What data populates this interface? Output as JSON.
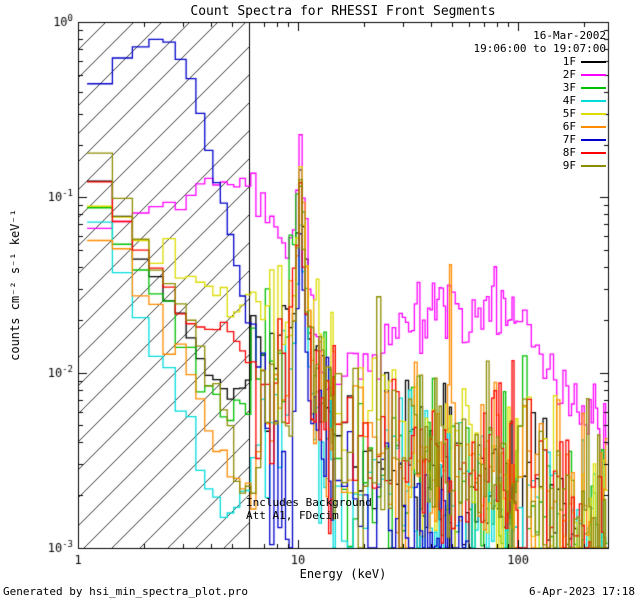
{
  "footer": {
    "left": "Generated by hsi_min_spectra_plot.pro",
    "right": "6-Apr-2023 17:18"
  },
  "chart_data": {
    "type": "line",
    "mode": "histogram-step",
    "x_scale": "log",
    "y_scale": "log",
    "xlim": [
      1,
      256
    ],
    "ylim": [
      0.001,
      1
    ],
    "grid": false,
    "title": "Count Spectra for RHESSI Front Segments",
    "xlabel": "Energy (keV)",
    "ylabel": "counts cm⁻² s⁻¹ keV⁻¹",
    "x_ticks": [
      {
        "value": 1,
        "label": "1"
      },
      {
        "value": 10,
        "label": "10"
      },
      {
        "value": 100,
        "label": "100"
      }
    ],
    "y_ticks": [
      {
        "value": 1,
        "label": "10^0"
      },
      {
        "value": 0.1,
        "label": "10^-1"
      },
      {
        "value": 0.01,
        "label": "10^-2"
      },
      {
        "value": 0.001,
        "label": "10^-3"
      }
    ],
    "excluded_region": {
      "x_from": 1,
      "x_to": 6,
      "style": "hatched"
    },
    "annotations": [
      "Includes Background",
      "Att A1, FDecim"
    ],
    "legend": {
      "date": "16-Mar-2002",
      "time_range": "19:06:00 to 19:07:00"
    },
    "binning": {
      "start": 1.1,
      "segments": [
        {
          "upto": 15,
          "step": 0.3333
        },
        {
          "upto": 50,
          "step": 1
        },
        {
          "upto": 100,
          "step": 2
        },
        {
          "upto": 256,
          "step": 5
        }
      ]
    },
    "series": [
      {
        "name": "1F",
        "color": "#000000",
        "noise_lo": 0.05,
        "noise_hi": 0.28,
        "anchors": [
          [
            1.1,
            0.17
          ],
          [
            1.35,
            0.105
          ],
          [
            1.65,
            0.068
          ],
          [
            2.0,
            0.044
          ],
          [
            2.5,
            0.028
          ],
          [
            3.0,
            0.018
          ],
          [
            3.6,
            0.012
          ],
          [
            4.3,
            0.0085
          ],
          [
            5.2,
            0.007
          ],
          [
            6.2,
            0.009
          ],
          [
            7.3,
            0.011
          ],
          [
            8.5,
            0.014
          ],
          [
            9.4,
            0.02
          ],
          [
            10.2,
            0.12
          ],
          [
            10.9,
            0.03
          ],
          [
            11.7,
            0.007
          ],
          [
            13,
            0.0045
          ],
          [
            16,
            0.0038
          ],
          [
            20,
            0.0033
          ],
          [
            27,
            0.0029
          ],
          [
            36,
            0.0026
          ],
          [
            50,
            0.0023
          ],
          [
            70,
            0.002
          ],
          [
            95,
            0.0017
          ],
          [
            125,
            0.0014
          ],
          [
            160,
            0.0011
          ],
          [
            190,
            0.001
          ]
        ]
      },
      {
        "name": "2F",
        "color": "#ff00ff",
        "noise_lo": 0.03,
        "noise_hi": 0.1,
        "anchors": [
          [
            1.1,
            0.062
          ],
          [
            1.4,
            0.072
          ],
          [
            1.8,
            0.082
          ],
          [
            2.3,
            0.088
          ],
          [
            2.9,
            0.095
          ],
          [
            3.6,
            0.105
          ],
          [
            4.4,
            0.115
          ],
          [
            5.2,
            0.125
          ],
          [
            6.0,
            0.115
          ],
          [
            7.0,
            0.092
          ],
          [
            8.0,
            0.06
          ],
          [
            8.8,
            0.042
          ],
          [
            9.5,
            0.05
          ],
          [
            10.2,
            0.19
          ],
          [
            10.9,
            0.07
          ],
          [
            11.6,
            0.02
          ],
          [
            12.5,
            0.01
          ],
          [
            14,
            0.0085
          ],
          [
            16,
            0.009
          ],
          [
            19,
            0.011
          ],
          [
            23,
            0.014
          ],
          [
            28,
            0.017
          ],
          [
            34,
            0.02
          ],
          [
            42,
            0.023
          ],
          [
            52,
            0.025
          ],
          [
            65,
            0.024
          ],
          [
            80,
            0.022
          ],
          [
            95,
            0.019
          ],
          [
            115,
            0.015
          ],
          [
            140,
            0.011
          ],
          [
            170,
            0.0075
          ],
          [
            200,
            0.0055
          ],
          [
            230,
            0.0045
          ],
          [
            256,
            0.004
          ]
        ]
      },
      {
        "name": "3F",
        "color": "#00c000",
        "noise_lo": 0.05,
        "noise_hi": 0.3,
        "anchors": [
          [
            1.1,
            0.125
          ],
          [
            1.4,
            0.075
          ],
          [
            1.75,
            0.048
          ],
          [
            2.2,
            0.03
          ],
          [
            2.7,
            0.019
          ],
          [
            3.3,
            0.012
          ],
          [
            4.0,
            0.008
          ],
          [
            4.8,
            0.006
          ],
          [
            5.8,
            0.0065
          ],
          [
            6.8,
            0.008
          ],
          [
            7.9,
            0.01
          ],
          [
            9.0,
            0.016
          ],
          [
            10.2,
            0.165
          ],
          [
            10.9,
            0.035
          ],
          [
            11.7,
            0.008
          ],
          [
            13,
            0.005
          ],
          [
            16,
            0.004
          ],
          [
            20,
            0.0034
          ],
          [
            27,
            0.003
          ],
          [
            36,
            0.0027
          ],
          [
            48,
            0.0025
          ],
          [
            65,
            0.0023
          ],
          [
            88,
            0.0021
          ],
          [
            115,
            0.0019
          ],
          [
            150,
            0.0016
          ],
          [
            195,
            0.0013
          ],
          [
            256,
            0.0011
          ]
        ]
      },
      {
        "name": "4F",
        "color": "#00dcdc",
        "noise_lo": 0.05,
        "noise_hi": 0.3,
        "anchors": [
          [
            1.1,
            0.092
          ],
          [
            1.4,
            0.052
          ],
          [
            1.75,
            0.028
          ],
          [
            2.2,
            0.015
          ],
          [
            2.7,
            0.008
          ],
          [
            3.3,
            0.0045
          ],
          [
            4.0,
            0.0024
          ],
          [
            4.7,
            0.0013
          ],
          [
            5.4,
            0.002
          ],
          [
            6.3,
            0.0028
          ],
          [
            7.4,
            0.0034
          ],
          [
            8.6,
            0.005
          ],
          [
            9.5,
            0.009
          ],
          [
            10.2,
            0.09
          ],
          [
            10.9,
            0.022
          ],
          [
            11.7,
            0.006
          ],
          [
            13,
            0.004
          ],
          [
            16,
            0.0032
          ],
          [
            21,
            0.0028
          ],
          [
            28,
            0.0026
          ],
          [
            38,
            0.0024
          ],
          [
            52,
            0.0022
          ],
          [
            72,
            0.002
          ],
          [
            100,
            0.0018
          ],
          [
            135,
            0.0015
          ],
          [
            180,
            0.0012
          ],
          [
            256,
            0.001
          ]
        ]
      },
      {
        "name": "5F",
        "color": "#dcdc00",
        "noise_lo": 0.05,
        "noise_hi": 0.28,
        "anchors": [
          [
            1.1,
            0.105
          ],
          [
            1.4,
            0.078
          ],
          [
            1.8,
            0.06
          ],
          [
            2.3,
            0.047
          ],
          [
            2.9,
            0.038
          ],
          [
            3.6,
            0.032
          ],
          [
            4.4,
            0.028
          ],
          [
            5.3,
            0.024
          ],
          [
            6.3,
            0.025
          ],
          [
            7.4,
            0.023
          ],
          [
            8.6,
            0.02
          ],
          [
            9.5,
            0.022
          ],
          [
            10.2,
            0.13
          ],
          [
            10.9,
            0.045
          ],
          [
            11.7,
            0.014
          ],
          [
            13,
            0.01
          ],
          [
            15,
            0.008
          ],
          [
            18,
            0.0062
          ],
          [
            22,
            0.005
          ],
          [
            28,
            0.0042
          ],
          [
            36,
            0.0036
          ],
          [
            48,
            0.0031
          ],
          [
            64,
            0.0028
          ],
          [
            85,
            0.0025
          ],
          [
            110,
            0.0022
          ],
          [
            145,
            0.0018
          ],
          [
            185,
            0.0015
          ],
          [
            256,
            0.0012
          ]
        ]
      },
      {
        "name": "6F",
        "color": "#ff8c00",
        "noise_lo": 0.06,
        "noise_hi": 0.32,
        "anchors": [
          [
            1.25,
            0.068
          ],
          [
            1.55,
            0.045
          ],
          [
            1.9,
            0.03
          ],
          [
            2.35,
            0.019
          ],
          [
            2.85,
            0.012
          ],
          [
            3.45,
            0.0075
          ],
          [
            4.1,
            0.0045
          ],
          [
            4.8,
            0.0028
          ],
          [
            5.5,
            0.002
          ],
          [
            6.4,
            0.0032
          ],
          [
            7.5,
            0.005
          ],
          [
            8.7,
            0.008
          ],
          [
            9.5,
            0.013
          ],
          [
            10.2,
            0.14
          ],
          [
            10.9,
            0.04
          ],
          [
            11.7,
            0.01
          ],
          [
            13,
            0.0065
          ],
          [
            15.5,
            0.005
          ],
          [
            19,
            0.0044
          ],
          [
            24,
            0.004
          ],
          [
            31,
            0.0037
          ],
          [
            41,
            0.0034
          ],
          [
            54,
            0.0031
          ],
          [
            71,
            0.0029
          ],
          [
            93,
            0.0026
          ],
          [
            120,
            0.0022
          ],
          [
            155,
            0.0018
          ],
          [
            200,
            0.0014
          ],
          [
            256,
            0.0012
          ]
        ]
      },
      {
        "name": "7F",
        "color": "#0000cc",
        "noise_lo": 0.02,
        "noise_hi": 0.25,
        "anchors": [
          [
            1.1,
            0.33
          ],
          [
            1.35,
            0.5
          ],
          [
            1.6,
            0.65
          ],
          [
            1.9,
            0.75
          ],
          [
            2.2,
            0.82
          ],
          [
            2.55,
            0.8
          ],
          [
            2.9,
            0.68
          ],
          [
            3.3,
            0.45
          ],
          [
            3.7,
            0.26
          ],
          [
            4.1,
            0.15
          ],
          [
            4.6,
            0.085
          ],
          [
            5.1,
            0.05
          ],
          [
            5.6,
            0.028
          ],
          [
            6.2,
            0.015
          ],
          [
            6.9,
            0.0075
          ],
          [
            7.7,
            0.0035
          ],
          [
            8.5,
            0.0018
          ],
          [
            9.3,
            0.0013
          ],
          [
            10.2,
            0.075
          ],
          [
            10.9,
            0.015
          ],
          [
            11.7,
            0.004
          ],
          [
            13,
            0.0025
          ],
          [
            16,
            0.002
          ],
          [
            20,
            0.0017
          ],
          [
            26,
            0.0014
          ],
          [
            34,
            0.0012
          ],
          [
            45,
            0.0011
          ],
          [
            60,
            0.001
          ]
        ]
      },
      {
        "name": "8F",
        "color": "#ff0000",
        "noise_lo": 0.05,
        "noise_hi": 0.3,
        "anchors": [
          [
            1.1,
            0.155
          ],
          [
            1.4,
            0.095
          ],
          [
            1.75,
            0.062
          ],
          [
            2.2,
            0.04
          ],
          [
            2.7,
            0.027
          ],
          [
            3.3,
            0.02
          ],
          [
            4.0,
            0.017
          ],
          [
            4.8,
            0.016
          ],
          [
            5.8,
            0.013
          ],
          [
            6.8,
            0.01
          ],
          [
            7.9,
            0.0075
          ],
          [
            9.0,
            0.009
          ],
          [
            10.2,
            0.1
          ],
          [
            10.9,
            0.025
          ],
          [
            11.7,
            0.0075
          ],
          [
            13,
            0.0055
          ],
          [
            16,
            0.0046
          ],
          [
            20,
            0.004
          ],
          [
            26,
            0.0036
          ],
          [
            34,
            0.0033
          ],
          [
            45,
            0.003
          ],
          [
            58,
            0.0028
          ],
          [
            75,
            0.0025
          ],
          [
            98,
            0.0021
          ],
          [
            128,
            0.0017
          ],
          [
            165,
            0.0013
          ],
          [
            210,
            0.0011
          ],
          [
            256,
            0.001
          ]
        ]
      },
      {
        "name": "9F",
        "color": "#8c8c00",
        "noise_lo": 0.05,
        "noise_hi": 0.3,
        "anchors": [
          [
            1.1,
            0.27
          ],
          [
            1.35,
            0.155
          ],
          [
            1.65,
            0.09
          ],
          [
            2.0,
            0.055
          ],
          [
            2.45,
            0.034
          ],
          [
            3.0,
            0.021
          ],
          [
            3.6,
            0.013
          ],
          [
            4.3,
            0.008
          ],
          [
            5.0,
            0.0045
          ],
          [
            5.6,
            0.002
          ],
          [
            6.3,
            0.0028
          ],
          [
            7.3,
            0.0042
          ],
          [
            8.4,
            0.0062
          ],
          [
            9.3,
            0.009
          ],
          [
            10.2,
            0.11
          ],
          [
            10.9,
            0.028
          ],
          [
            11.7,
            0.008
          ],
          [
            13,
            0.0058
          ],
          [
            16,
            0.0048
          ],
          [
            20,
            0.0042
          ],
          [
            26,
            0.0038
          ],
          [
            34,
            0.0035
          ],
          [
            44,
            0.0032
          ],
          [
            57,
            0.003
          ],
          [
            74,
            0.0028
          ],
          [
            96,
            0.0025
          ],
          [
            125,
            0.0021
          ],
          [
            160,
            0.0017
          ],
          [
            205,
            0.0014
          ],
          [
            256,
            0.0012
          ]
        ]
      }
    ]
  }
}
